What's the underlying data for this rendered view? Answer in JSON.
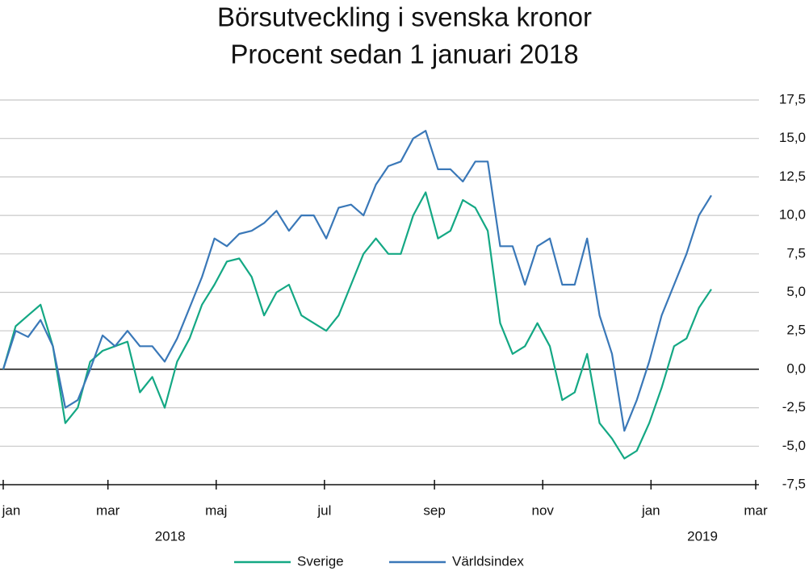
{
  "chart_data": {
    "type": "line",
    "title": "Börsutveckling i svenska kronor",
    "subtitle": "Procent sedan 1 januari 2018",
    "x": [
      "2018-01-01",
      "2018-01-08",
      "2018-01-15",
      "2018-01-22",
      "2018-01-29",
      "2018-02-05",
      "2018-02-12",
      "2018-02-19",
      "2018-02-26",
      "2018-03-05",
      "2018-03-12",
      "2018-03-19",
      "2018-03-26",
      "2018-04-02",
      "2018-04-09",
      "2018-04-16",
      "2018-04-23",
      "2018-04-30",
      "2018-05-07",
      "2018-05-14",
      "2018-05-21",
      "2018-05-28",
      "2018-06-04",
      "2018-06-11",
      "2018-06-18",
      "2018-06-25",
      "2018-07-02",
      "2018-07-09",
      "2018-07-16",
      "2018-07-23",
      "2018-07-30",
      "2018-08-06",
      "2018-08-13",
      "2018-08-20",
      "2018-08-27",
      "2018-09-03",
      "2018-09-10",
      "2018-09-17",
      "2018-09-24",
      "2018-10-01",
      "2018-10-08",
      "2018-10-15",
      "2018-10-22",
      "2018-10-29",
      "2018-11-05",
      "2018-11-12",
      "2018-11-19",
      "2018-11-26",
      "2018-12-03",
      "2018-12-10",
      "2018-12-17",
      "2018-12-24",
      "2018-12-31",
      "2019-01-07",
      "2019-01-14",
      "2019-01-21",
      "2019-01-28",
      "2019-02-04"
    ],
    "series": [
      {
        "name": "Sverige",
        "color": "#14a884",
        "values": [
          0,
          2.8,
          3.5,
          4.2,
          1.5,
          -3.5,
          -2.5,
          0.5,
          1.2,
          1.5,
          1.8,
          -1.5,
          -0.5,
          -2.5,
          0.5,
          2,
          4.2,
          5.5,
          7,
          7.2,
          6,
          3.5,
          5,
          5.5,
          3.5,
          3,
          2.5,
          3.5,
          5.5,
          7.5,
          8.5,
          7.5,
          7.5,
          10,
          11.5,
          8.5,
          9,
          11,
          10.5,
          9,
          3,
          1,
          1.5,
          3,
          1.5,
          -2,
          -1.5,
          1,
          -3.5,
          -4.5,
          -5.8,
          -5.3,
          -3.5,
          -1.2,
          1.5,
          2,
          4,
          5.2
        ]
      },
      {
        "name": "Världsindex",
        "color": "#3a78b8",
        "values": [
          0,
          2.5,
          2.1,
          3.2,
          1.5,
          -2.5,
          -2,
          0,
          2.2,
          1.5,
          2.5,
          1.5,
          1.5,
          0.5,
          2,
          4,
          6,
          8.5,
          8,
          8.8,
          9,
          9.5,
          10.3,
          9,
          10,
          10,
          8.5,
          10.5,
          10.7,
          10,
          12,
          13.2,
          13.5,
          15,
          15.5,
          13,
          13,
          12.2,
          13.5,
          13.5,
          8,
          8,
          5.5,
          8,
          8.5,
          5.5,
          5.5,
          8.5,
          3.5,
          1,
          -4,
          -2,
          0.5,
          3.5,
          5.5,
          7.5,
          10,
          11.3
        ]
      }
    ],
    "xlim": [
      "2018-01-01",
      "2019-03-01"
    ],
    "xticks": [
      {
        "value": "2018-01-01",
        "label": "jan"
      },
      {
        "value": "2018-03-01",
        "label": "mar"
      },
      {
        "value": "2018-05-01",
        "label": "maj"
      },
      {
        "value": "2018-07-01",
        "label": "jul"
      },
      {
        "value": "2018-09-01",
        "label": "sep"
      },
      {
        "value": "2018-11-01",
        "label": "nov"
      },
      {
        "value": "2019-01-01",
        "label": "jan"
      },
      {
        "value": "2019-03-01",
        "label": "mar"
      }
    ],
    "year_labels": [
      {
        "value": "2018-04-05",
        "label": "2018"
      },
      {
        "value": "2019-01-30",
        "label": "2019"
      }
    ],
    "ylim": [
      -7.5,
      17.5
    ],
    "yticks": [
      {
        "value": 17.5,
        "label": "17,5"
      },
      {
        "value": 15,
        "label": "15,0"
      },
      {
        "value": 12.5,
        "label": "12,5"
      },
      {
        "value": 10,
        "label": "10,0"
      },
      {
        "value": 7.5,
        "label": "7,5"
      },
      {
        "value": 5,
        "label": "5,0"
      },
      {
        "value": 2.5,
        "label": "2,5"
      },
      {
        "value": 0,
        "label": "0,0"
      },
      {
        "value": -2.5,
        "label": "-2,5"
      },
      {
        "value": -5,
        "label": "-5,0"
      },
      {
        "value": -7.5,
        "label": "-7,5"
      }
    ],
    "grid": true
  }
}
